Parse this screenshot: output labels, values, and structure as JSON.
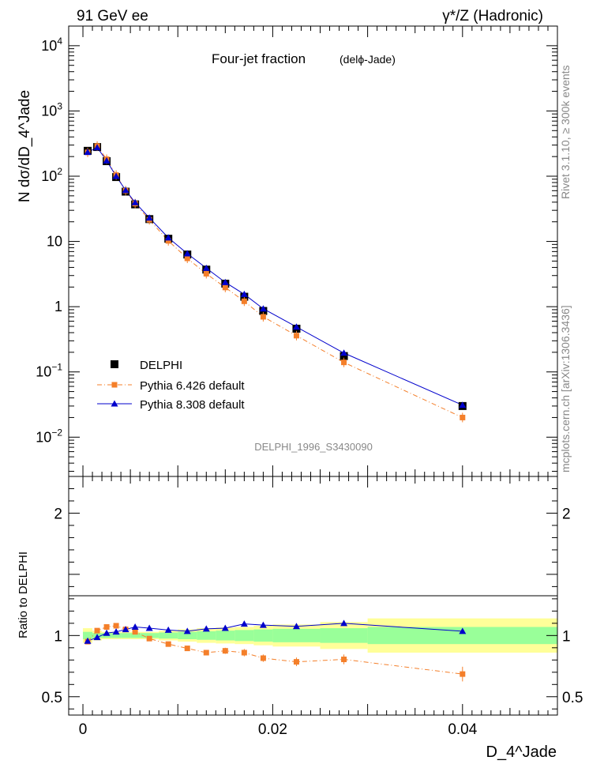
{
  "header": {
    "left": "91 GeV ee",
    "right": "γ*/Z (Hadronic)"
  },
  "side_text": {
    "rivet": "Rivet 3.1.10, ≥ 300k events",
    "mcplots": "mcplots.cern.ch [arXiv:1306.3436]"
  },
  "colors": {
    "delphi": "#000000",
    "pythia6": "#f47f2a",
    "pythia8": "#0000cc",
    "band_inner": "#99ff99",
    "band_outer": "#ffff99"
  },
  "chart_data": [
    {
      "type": "scatter",
      "title": "Four-jet fraction",
      "subtitle": "(delϕ-Jade)",
      "watermark": "DELPHI_1996_S3430090",
      "xlabel": "D_4^Jade",
      "ylabel": "N dσ/dD_4^Jade",
      "yscale": "log",
      "xlim": [
        -0.0015,
        0.05
      ],
      "ylim": [
        0.0025,
        20000
      ],
      "y_tick_labels": [
        "10^-2",
        "10^-1",
        "1",
        "10",
        "10^2",
        "10^3",
        "10^4"
      ],
      "legend": [
        "DELPHI",
        "Pythia 6.426 default",
        "Pythia 8.308 default"
      ],
      "x": [
        0.0005,
        0.0015,
        0.0025,
        0.0035,
        0.0045,
        0.0055,
        0.007,
        0.009,
        0.011,
        0.013,
        0.015,
        0.017,
        0.019,
        0.0225,
        0.0275,
        0.04
      ],
      "series": [
        {
          "name": "DELPHI",
          "values": [
            245,
            280,
            170,
            97,
            58,
            37,
            22,
            11,
            6.3,
            3.7,
            2.25,
            1.42,
            0.86,
            0.46,
            0.175,
            0.03
          ]
        },
        {
          "name": "Pythia 6.426 default",
          "values": [
            232,
            290,
            182,
            104,
            60,
            38,
            21.5,
            10.2,
            5.5,
            3.2,
            1.97,
            1.21,
            0.7,
            0.36,
            0.14,
            0.02
          ]
        },
        {
          "name": "Pythia 8.308 default",
          "values": [
            233,
            275,
            173,
            100,
            61,
            39.5,
            23,
            11.4,
            6.5,
            3.9,
            2.36,
            1.55,
            0.93,
            0.49,
            0.195,
            0.031
          ]
        }
      ]
    },
    {
      "type": "scatter",
      "ylabel": "Ratio to DELPHI",
      "xlabel": "D_4^Jade",
      "xlim": [
        -0.0015,
        0.05
      ],
      "ylim": [
        0.35,
        2.3
      ],
      "y_ticks": [
        0.5,
        1,
        2
      ],
      "x_ticks": [
        0,
        0.02,
        0.04
      ],
      "x_tick_labels": [
        "0",
        "0.02",
        "0.04"
      ],
      "x": [
        0.0005,
        0.0015,
        0.0025,
        0.0035,
        0.0045,
        0.0055,
        0.007,
        0.009,
        0.011,
        0.013,
        0.015,
        0.017,
        0.019,
        0.0225,
        0.0275,
        0.04
      ],
      "bin_edges": [
        0.0,
        0.001,
        0.002,
        0.003,
        0.004,
        0.005,
        0.006,
        0.008,
        0.01,
        0.012,
        0.014,
        0.016,
        0.018,
        0.02,
        0.025,
        0.03,
        0.05
      ],
      "band_inner_halfwidth": [
        0.03,
        0.02,
        0.02,
        0.02,
        0.02,
        0.02,
        0.02,
        0.025,
        0.03,
        0.035,
        0.04,
        0.045,
        0.05,
        0.055,
        0.06,
        0.07
      ],
      "band_outer_halfwidth": [
        0.06,
        0.04,
        0.03,
        0.03,
        0.03,
        0.03,
        0.03,
        0.04,
        0.05,
        0.06,
        0.065,
        0.07,
        0.08,
        0.09,
        0.11,
        0.14
      ],
      "series": [
        {
          "name": "Pythia 6.426 default",
          "values": [
            0.95,
            1.04,
            1.07,
            1.08,
            1.05,
            1.03,
            0.975,
            0.93,
            0.895,
            0.86,
            0.875,
            0.86,
            0.815,
            0.785,
            0.805,
            0.685
          ],
          "errors": [
            0.01,
            0.01,
            0.01,
            0.01,
            0.01,
            0.01,
            0.01,
            0.01,
            0.015,
            0.02,
            0.025,
            0.03,
            0.03,
            0.035,
            0.04,
            0.06
          ]
        },
        {
          "name": "Pythia 8.308 default",
          "values": [
            0.955,
            0.985,
            1.02,
            1.03,
            1.05,
            1.07,
            1.06,
            1.045,
            1.035,
            1.055,
            1.06,
            1.095,
            1.085,
            1.075,
            1.1,
            1.035
          ],
          "errors": [
            0.005,
            0.005,
            0.005,
            0.005,
            0.005,
            0.005,
            0.005,
            0.005,
            0.008,
            0.01,
            0.01,
            0.012,
            0.012,
            0.015,
            0.018,
            0.02
          ]
        }
      ]
    }
  ]
}
